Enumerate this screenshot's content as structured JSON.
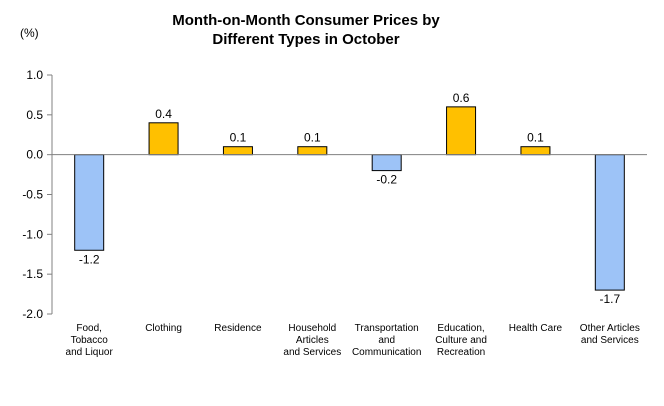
{
  "chart_data": {
    "type": "bar",
    "title_lines": [
      "Month-on-Month Consumer Prices by",
      "Different Types in October"
    ],
    "unit_label": "(%)",
    "categories": [
      [
        "Food,",
        "Tobacco",
        "and Liquor"
      ],
      [
        "Clothing"
      ],
      [
        "Residence"
      ],
      [
        "Household",
        "Articles",
        "and Services"
      ],
      [
        "Transportation",
        "and",
        "Communication"
      ],
      [
        "Education,",
        "Culture and",
        "Recreation"
      ],
      [
        "Health Care"
      ],
      [
        "Other Articles",
        "and Services"
      ]
    ],
    "values": [
      -1.2,
      0.4,
      0.1,
      0.1,
      -0.2,
      0.6,
      0.1,
      -1.7
    ],
    "value_labels": [
      "-1.2",
      "0.4",
      "0.1",
      "0.1",
      "-0.2",
      "0.6",
      "0.1",
      "-1.7"
    ],
    "ylim": [
      -2.0,
      1.0
    ],
    "yticks": [
      "-2.0",
      "-1.5",
      "-1.0",
      "-0.5",
      "0.0",
      "0.5",
      "1.0"
    ],
    "grid": false,
    "legend": "none",
    "colors": {
      "positive": "#FFC000",
      "negative": "#9DC3F7",
      "stroke": "#000000",
      "axis": "#808080"
    }
  }
}
